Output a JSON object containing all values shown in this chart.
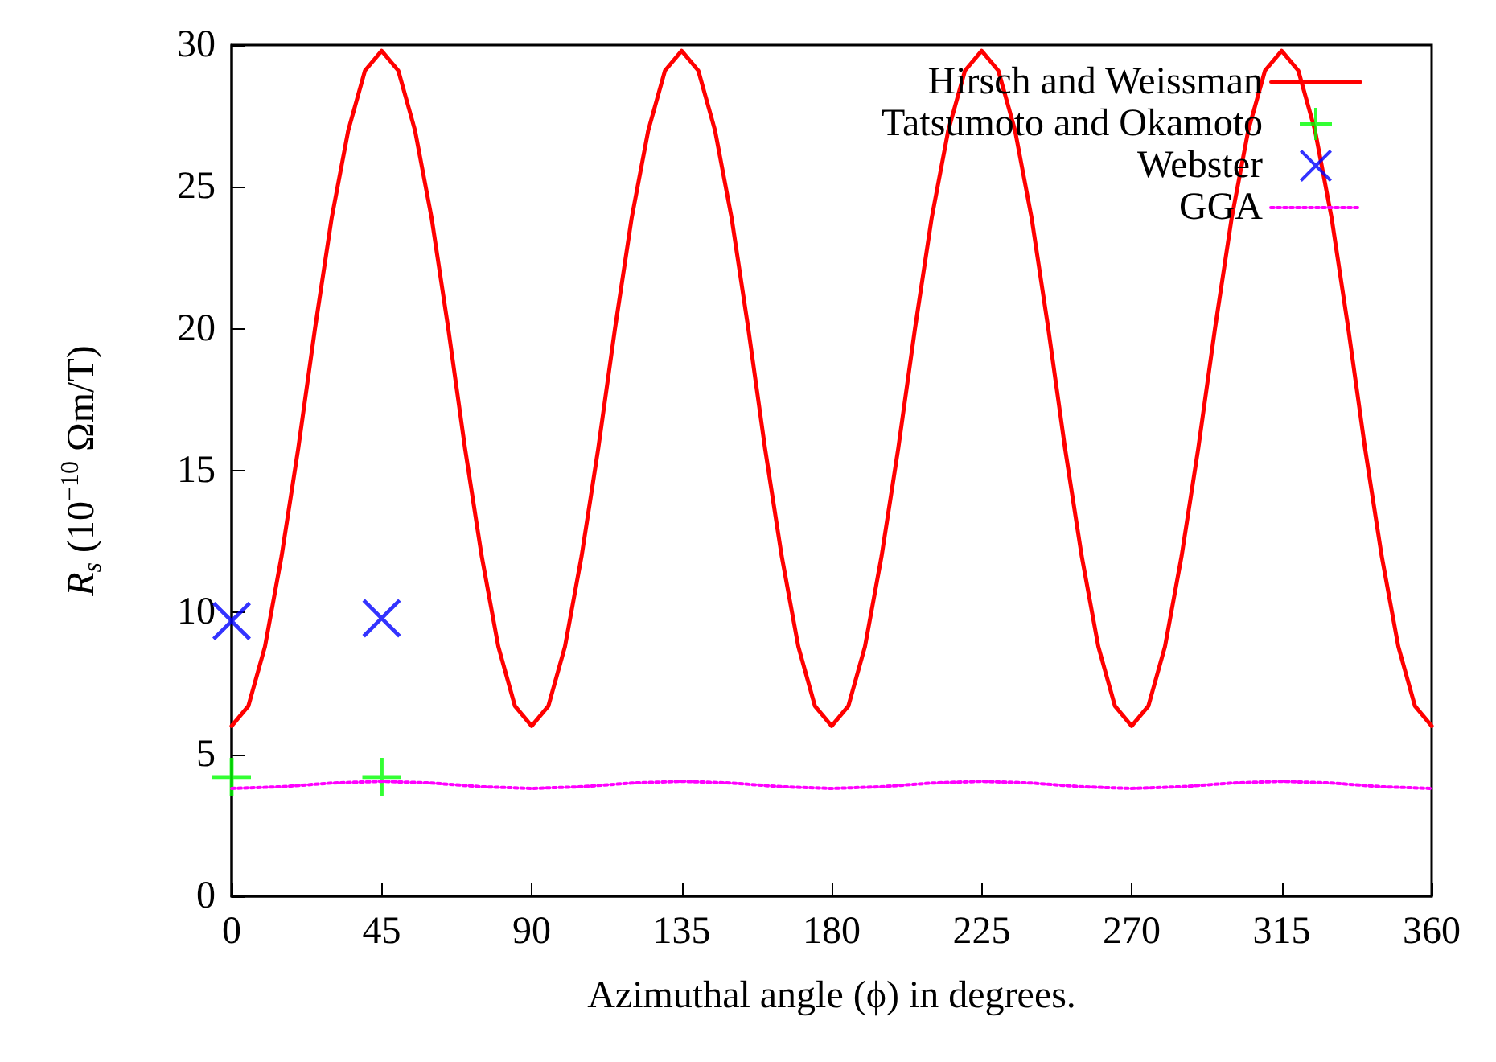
{
  "chart_data": {
    "type": "line",
    "xlabel": "Azimuthal angle (ϕ) in degrees.",
    "ylabel": "R$_{s}$ (10$^{−10}$ Ωm/T)",
    "xlim": [
      0,
      360
    ],
    "xticks": [
      0,
      45,
      90,
      135,
      180,
      225,
      270,
      315,
      360
    ],
    "ylim": [
      0,
      30
    ],
    "yticks": [
      0,
      5,
      10,
      15,
      20,
      25,
      30
    ],
    "grid": false,
    "legend": "top right",
    "series": [
      {
        "name": "Hirsch and Weissman",
        "color": "#ff0000",
        "line_style": "solid",
        "marker": "none",
        "x": [
          0,
          5,
          10,
          15,
          20,
          25,
          30,
          35,
          40,
          45,
          50,
          55,
          60,
          65,
          70,
          75,
          80,
          85,
          90,
          95,
          100,
          105,
          110,
          115,
          120,
          125,
          130,
          135,
          140,
          145,
          150,
          155,
          160,
          165,
          170,
          175,
          180,
          185,
          190,
          195,
          200,
          205,
          210,
          215,
          220,
          225,
          230,
          235,
          240,
          245,
          250,
          255,
          260,
          265,
          270,
          275,
          280,
          285,
          290,
          295,
          300,
          305,
          310,
          315,
          320,
          325,
          330,
          335,
          340,
          345,
          350,
          355,
          360
        ],
        "values": [
          6,
          6.7,
          8.8,
          12,
          15.8,
          20,
          23.9,
          27,
          29.1,
          29.8,
          29.1,
          27,
          23.9,
          20,
          15.8,
          12,
          8.8,
          6.7,
          6,
          6.7,
          8.8,
          12,
          15.8,
          20,
          23.9,
          27,
          29.1,
          29.8,
          29.1,
          27,
          23.9,
          20,
          15.8,
          12,
          8.8,
          6.7,
          6,
          6.7,
          8.8,
          12,
          15.8,
          20,
          23.9,
          27,
          29.1,
          29.8,
          29.1,
          27,
          23.9,
          20,
          15.8,
          12,
          8.8,
          6.7,
          6,
          6.7,
          8.8,
          12,
          15.8,
          20,
          23.9,
          27,
          29.1,
          29.8,
          29.1,
          27,
          23.9,
          20,
          15.8,
          12,
          8.8,
          6.7,
          6
        ]
      },
      {
        "name": "Tatsumoto and Okamoto",
        "type": "scatter",
        "color": "#00ff00",
        "x": [
          0,
          45
        ],
        "values": [
          4.2,
          4.2
        ]
      },
      {
        "name": "Webster",
        "type": "scatter",
        "color": "#0000ff",
        "marker": "cross",
        "x": [
          0,
          45
        ],
        "values": [
          9.7,
          9.8
        ]
      },
      {
        "name": "GGA",
        "color": "#ff00ff",
        "line_style": "dotted",
        "marker": "none",
        "x": [
          0,
          15,
          30,
          45,
          60,
          75,
          90,
          105,
          120,
          135,
          150,
          165,
          180,
          195,
          210,
          225,
          240,
          255,
          270,
          285,
          300,
          315,
          330,
          345,
          360
        ],
        "values": [
          3.8,
          3.86,
          3.99,
          4.05,
          3.99,
          3.86,
          3.8,
          3.86,
          3.99,
          4.05,
          3.99,
          3.86,
          3.8,
          3.86,
          3.99,
          4.05,
          3.99,
          3.86,
          3.8,
          3.86,
          3.99,
          4.05,
          3.99,
          3.86,
          3.8
        ]
      }
    ]
  }
}
